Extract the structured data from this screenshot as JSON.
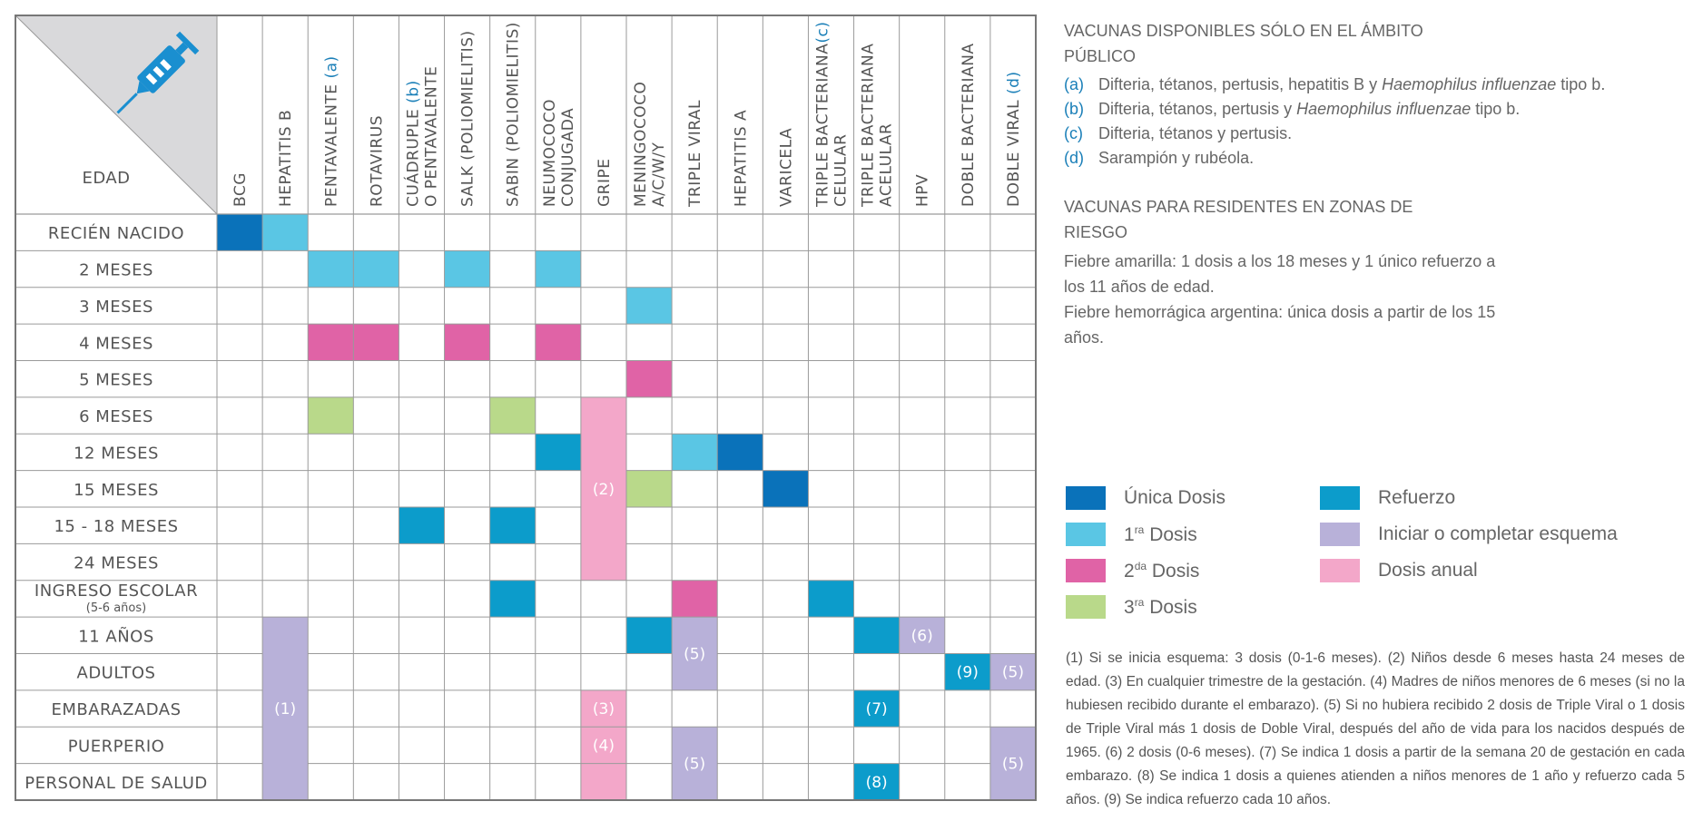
{
  "table": {
    "corner_label": "EDAD",
    "columns": [
      {
        "id": "bcg",
        "lines": [
          "BCG"
        ]
      },
      {
        "id": "hepb",
        "lines": [
          "HEPATITIS B"
        ]
      },
      {
        "id": "penta",
        "lines": [
          "PENTAVALENTE "
        ],
        "note": "(a)"
      },
      {
        "id": "rota",
        "lines": [
          "ROTAVIRUS"
        ]
      },
      {
        "id": "cuad",
        "lines": [
          "CUÁDRUPLE ",
          "O PENTAVALENTE"
        ],
        "note": "(b)"
      },
      {
        "id": "salk",
        "lines": [
          "SALK (POLIOMIELITIS)"
        ]
      },
      {
        "id": "sabin",
        "lines": [
          "SABIN (POLIOMIELITIS)"
        ]
      },
      {
        "id": "neumo",
        "lines": [
          "NEUMOCOCO",
          "CONJUGADA"
        ]
      },
      {
        "id": "gripe",
        "lines": [
          "GRIPE"
        ]
      },
      {
        "id": "menin",
        "lines": [
          "MENINGOCOCO",
          "A/C/W/Y"
        ]
      },
      {
        "id": "tviral",
        "lines": [
          "TRIPLE VIRAL"
        ]
      },
      {
        "id": "hepa",
        "lines": [
          "HEPATITIS A"
        ]
      },
      {
        "id": "vari",
        "lines": [
          "VARICELA"
        ]
      },
      {
        "id": "tbc",
        "lines": [
          "TRIPLE BACTERIANA",
          "CELULAR "
        ],
        "note": "(c)"
      },
      {
        "id": "tba",
        "lines": [
          "TRIPLE BACTERIANA",
          "ACELULAR"
        ]
      },
      {
        "id": "hpv",
        "lines": [
          "HPV"
        ]
      },
      {
        "id": "dbact",
        "lines": [
          "DOBLE BACTERIANA"
        ]
      },
      {
        "id": "dviral",
        "lines": [
          "DOBLE VIRAL "
        ],
        "note": "(d)"
      }
    ],
    "rows": [
      {
        "label": "RECIÉN NACIDO"
      },
      {
        "label": "2 MESES"
      },
      {
        "label": "3 MESES"
      },
      {
        "label": "4 MESES"
      },
      {
        "label": "5 MESES"
      },
      {
        "label": "6 MESES"
      },
      {
        "label": "12 MESES"
      },
      {
        "label": "15 MESES"
      },
      {
        "label": "15 - 18 MESES"
      },
      {
        "label": "24 MESES"
      },
      {
        "label": "INGRESO ESCOLAR",
        "sub": "(5-6 años)"
      },
      {
        "label": "11 AÑOS"
      },
      {
        "label": "ADULTOS"
      },
      {
        "label": "EMBARAZADAS"
      },
      {
        "label": "PUERPERIO"
      },
      {
        "label": "PERSONAL DE SALUD"
      }
    ],
    "cells": [
      {
        "r": 0,
        "c": 0,
        "k": "unica"
      },
      {
        "r": 0,
        "c": 1,
        "k": "primera"
      },
      {
        "r": 1,
        "c": 2,
        "k": "primera"
      },
      {
        "r": 1,
        "c": 3,
        "k": "primera"
      },
      {
        "r": 1,
        "c": 5,
        "k": "primera"
      },
      {
        "r": 1,
        "c": 7,
        "k": "primera"
      },
      {
        "r": 2,
        "c": 9,
        "k": "primera"
      },
      {
        "r": 3,
        "c": 2,
        "k": "segunda"
      },
      {
        "r": 3,
        "c": 3,
        "k": "segunda"
      },
      {
        "r": 3,
        "c": 5,
        "k": "segunda"
      },
      {
        "r": 3,
        "c": 7,
        "k": "segunda"
      },
      {
        "r": 4,
        "c": 9,
        "k": "segunda"
      },
      {
        "r": 5,
        "c": 2,
        "k": "tercera"
      },
      {
        "r": 5,
        "c": 6,
        "k": "tercera"
      },
      {
        "r": 5,
        "c": 8,
        "k": "anual",
        "span": 5,
        "label": "(2)"
      },
      {
        "r": 6,
        "c": 7,
        "k": "refuerzo"
      },
      {
        "r": 6,
        "c": 10,
        "k": "primera"
      },
      {
        "r": 6,
        "c": 11,
        "k": "unica"
      },
      {
        "r": 7,
        "c": 9,
        "k": "tercera"
      },
      {
        "r": 7,
        "c": 12,
        "k": "unica"
      },
      {
        "r": 8,
        "c": 4,
        "k": "refuerzo"
      },
      {
        "r": 8,
        "c": 6,
        "k": "refuerzo"
      },
      {
        "r": 10,
        "c": 6,
        "k": "refuerzo"
      },
      {
        "r": 10,
        "c": 10,
        "k": "segunda"
      },
      {
        "r": 10,
        "c": 13,
        "k": "refuerzo"
      },
      {
        "r": 11,
        "c": 1,
        "k": "iniciar",
        "span": 5,
        "label": "(1)"
      },
      {
        "r": 11,
        "c": 9,
        "k": "refuerzo"
      },
      {
        "r": 11,
        "c": 10,
        "k": "iniciar",
        "span": 2,
        "label": "(5)"
      },
      {
        "r": 11,
        "c": 14,
        "k": "refuerzo"
      },
      {
        "r": 11,
        "c": 15,
        "k": "iniciar",
        "label": "(6)"
      },
      {
        "r": 12,
        "c": 16,
        "k": "refuerzo",
        "label": "(9)"
      },
      {
        "r": 12,
        "c": 17,
        "k": "iniciar",
        "label": "(5)"
      },
      {
        "r": 13,
        "c": 8,
        "k": "anual",
        "label": "(3)"
      },
      {
        "r": 13,
        "c": 14,
        "k": "refuerzo",
        "label": "(7)"
      },
      {
        "r": 14,
        "c": 8,
        "k": "anual",
        "label": "(4)"
      },
      {
        "r": 14,
        "c": 10,
        "k": "iniciar",
        "span": 2,
        "label": "(5)"
      },
      {
        "r": 14,
        "c": 17,
        "k": "iniciar",
        "span": 2,
        "label": "(5)"
      },
      {
        "r": 15,
        "c": 8,
        "k": "anual"
      },
      {
        "r": 15,
        "c": 14,
        "k": "refuerzo",
        "label": "(8)"
      }
    ]
  },
  "colors": {
    "unica": "#0a72ba",
    "primera": "#5ac6e4",
    "segunda": "#e063a6",
    "tercera": "#b9d98a",
    "refuerzo": "#0c9ccb",
    "iniciar": "#b8b1d9",
    "anual": "#f3a7c9",
    "header_bg": "#d9d9db",
    "icon": "#1a8fd0",
    "grid": "#9a9a9a",
    "note_blue": "#1a7fb8"
  },
  "icon": {
    "name": "syringe-icon"
  },
  "notes": {
    "public_title": "VACUNAS DISPONIBLES SÓLO EN EL ÁMBITO PÚBLICO",
    "items": [
      {
        "key": "(a)",
        "text_before": "Difteria, tétanos, pertusis, hepatitis B y ",
        "italic": "Haemophilus influenzae",
        "text_after": " tipo b."
      },
      {
        "key": "(b)",
        "text_before": "Difteria, tétanos, pertusis y ",
        "italic": "Haemophilus influenzae",
        "text_after": " tipo b."
      },
      {
        "key": "(c)",
        "text_before": "Difteria, tétanos y pertusis.",
        "italic": "",
        "text_after": ""
      },
      {
        "key": "(d)",
        "text_before": "Sarampión y rubéola.",
        "italic": "",
        "text_after": ""
      }
    ],
    "risk_title": "VACUNAS PARA RESIDENTES EN ZONAS DE RIESGO",
    "risk_lines": [
      "Fiebre amarilla: 1 dosis a los 18 meses y 1 único refuerzo a los 11 años de edad.",
      "Fiebre hemorrágica argentina: única dosis a partir de los 15 años."
    ]
  },
  "legend": [
    {
      "key": "unica",
      "text": "Única Dosis",
      "sup": ""
    },
    {
      "key": "primera",
      "text": "1",
      "sup": "ra",
      "rest": " Dosis"
    },
    {
      "key": "segunda",
      "text": "2",
      "sup": "da",
      "rest": " Dosis"
    },
    {
      "key": "tercera",
      "text": "3",
      "sup": "ra",
      "rest": " Dosis"
    },
    {
      "key": "refuerzo",
      "text": "Refuerzo",
      "sup": ""
    },
    {
      "key": "iniciar",
      "text": "Iniciar o completar esquema",
      "sup": ""
    },
    {
      "key": "anual",
      "text": "Dosis anual",
      "sup": ""
    }
  ],
  "footnotes": "(1) Si se inicia esquema: 3 dosis (0-1-6 meses). (2) Niños desde 6 meses hasta 24 meses de edad. (3) En cualquier trimestre de la gestación. (4) Madres de niños menores de 6 meses (si no la hubiesen recibido durante el embarazo). (5) Si no hubiera recibido 2 dosis de Triple Viral o 1 dosis de Triple Viral más 1 dosis de Doble Viral, después del año de vida para los nacidos después de 1965. (6) 2 dosis (0-6 meses). (7) Se indica 1 dosis a partir de la semana 20 de gestación en cada embarazo. (8) Se indica 1 dosis a quienes atienden a niños menores de 1 año y refuerzo cada 5 años. (9) Se indica refuerzo cada 10 años."
}
